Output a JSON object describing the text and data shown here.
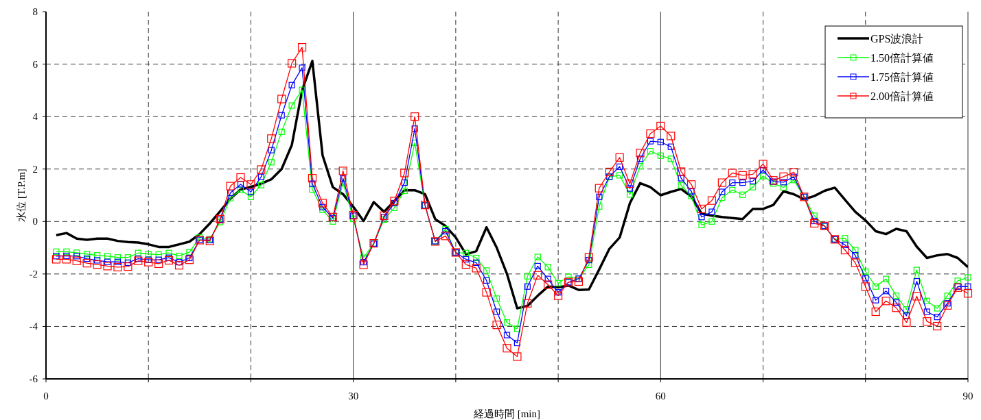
{
  "chart_data": {
    "type": "line",
    "xlabel": "経過時間 [min]",
    "ylabel": "水位 [T.P.m]",
    "x": [
      1,
      2,
      3,
      4,
      5,
      6,
      7,
      8,
      9,
      10,
      11,
      12,
      13,
      14,
      15,
      16,
      17,
      18,
      19,
      20,
      21,
      22,
      23,
      24,
      25,
      26,
      27,
      28,
      29,
      30,
      31,
      32,
      33,
      34,
      35,
      36,
      37,
      38,
      39,
      40,
      41,
      42,
      43,
      44,
      45,
      46,
      47,
      48,
      49,
      50,
      51,
      52,
      53,
      54,
      55,
      56,
      57,
      58,
      59,
      60,
      61,
      62,
      63,
      64,
      65,
      66,
      67,
      68,
      69,
      70,
      71,
      72,
      73,
      74,
      75,
      76,
      77,
      78,
      79,
      80,
      81,
      82,
      83,
      84,
      85,
      86,
      87,
      88,
      89,
      90
    ],
    "xlim": [
      0,
      90
    ],
    "ylim": [
      -6,
      8
    ],
    "xticks": [
      0,
      {
        "value": 10,
        "label": null
      },
      {
        "value": 20,
        "label": null
      },
      30,
      {
        "value": 40,
        "label": null
      },
      {
        "value": 50,
        "label": null
      },
      60,
      {
        "value": 70,
        "label": null
      },
      {
        "value": 80,
        "label": null
      },
      90
    ],
    "yticks": [
      -6,
      -4,
      -2,
      0,
      2,
      4,
      6,
      8
    ],
    "grid": true,
    "legend": "top right",
    "series": [
      {
        "name": "GPS波浪計",
        "color": "#000000",
        "marker": "none",
        "values": [
          -0.52,
          -0.44,
          -0.65,
          -0.7,
          -0.65,
          -0.65,
          -0.74,
          -0.78,
          -0.8,
          -0.87,
          -0.97,
          -0.97,
          -0.87,
          -0.77,
          -0.48,
          -0.07,
          0.39,
          0.87,
          1.22,
          1.32,
          1.44,
          1.61,
          2.0,
          2.92,
          5.0,
          6.12,
          2.52,
          1.31,
          1.04,
          0.56,
          0.02,
          0.74,
          0.37,
          0.78,
          1.19,
          1.19,
          1.04,
          0.09,
          -0.17,
          -0.61,
          -1.25,
          -1.13,
          -0.22,
          -1.0,
          -2.0,
          -3.31,
          -3.22,
          -2.83,
          -2.48,
          -2.51,
          -2.44,
          -2.61,
          -2.59,
          -1.83,
          -1.04,
          -0.61,
          0.7,
          1.46,
          1.31,
          1.0,
          1.13,
          1.24,
          0.95,
          0.3,
          0.22,
          0.17,
          0.13,
          0.09,
          0.48,
          0.48,
          0.63,
          1.15,
          1.04,
          0.85,
          0.97,
          1.17,
          1.29,
          0.83,
          0.37,
          0.04,
          -0.37,
          -0.48,
          -0.28,
          -0.37,
          -0.96,
          -1.39,
          -1.29,
          -1.24,
          -1.39,
          -1.74
        ]
      },
      {
        "name": "1.50倍計算値",
        "color": "#00ff00",
        "marker": "square",
        "values": [
          -1.15,
          -1.15,
          -1.19,
          -1.24,
          -1.29,
          -1.32,
          -1.37,
          -1.37,
          -1.2,
          -1.24,
          -1.26,
          -1.2,
          -1.31,
          -1.17,
          -0.61,
          -0.67,
          -0.02,
          0.89,
          1.2,
          0.94,
          1.39,
          2.26,
          3.42,
          4.42,
          5.02,
          1.22,
          0.44,
          0.0,
          1.48,
          0.1,
          -1.38,
          -0.83,
          0.07,
          0.52,
          1.17,
          3.0,
          0.62,
          -0.76,
          -0.29,
          -1.19,
          -1.2,
          -1.39,
          -1.87,
          -2.94,
          -3.85,
          -4.09,
          -2.09,
          -1.35,
          -1.74,
          -2.35,
          -2.11,
          -2.18,
          -1.65,
          0.57,
          1.7,
          1.76,
          1.03,
          2.11,
          2.68,
          2.51,
          2.39,
          1.38,
          0.97,
          -0.13,
          0.0,
          0.91,
          1.2,
          1.02,
          1.31,
          1.73,
          1.45,
          1.3,
          1.58,
          0.94,
          0.22,
          -0.17,
          -0.68,
          -0.64,
          -1.09,
          -1.91,
          -2.48,
          -2.19,
          -2.83,
          -3.35,
          -1.85,
          -3.03,
          -3.31,
          -2.83,
          -2.26,
          -2.13
        ]
      },
      {
        "name": "1.75倍計算値",
        "color": "#0000ff",
        "marker": "square",
        "values": [
          -1.32,
          -1.31,
          -1.32,
          -1.42,
          -1.48,
          -1.54,
          -1.54,
          -1.57,
          -1.42,
          -1.46,
          -1.46,
          -1.38,
          -1.55,
          -1.39,
          -0.7,
          -0.71,
          0.07,
          1.09,
          1.42,
          1.13,
          1.7,
          2.72,
          4.05,
          5.2,
          5.86,
          1.44,
          0.55,
          0.13,
          1.64,
          0.22,
          -1.55,
          -0.85,
          0.17,
          0.7,
          1.48,
          3.54,
          0.61,
          -0.75,
          -0.37,
          -1.18,
          -1.44,
          -1.57,
          -2.25,
          -3.44,
          -4.33,
          -4.63,
          -2.48,
          -1.7,
          -2.19,
          -2.7,
          -2.32,
          -2.18,
          -1.47,
          0.94,
          1.71,
          2.09,
          1.26,
          2.39,
          3.06,
          3.03,
          2.85,
          1.65,
          1.15,
          0.17,
          0.37,
          1.13,
          1.48,
          1.48,
          1.54,
          1.96,
          1.52,
          1.5,
          1.7,
          0.94,
          0.02,
          -0.17,
          -0.68,
          -0.89,
          -1.29,
          -2.16,
          -3.0,
          -2.65,
          -3.09,
          -3.59,
          -2.28,
          -3.44,
          -3.64,
          -3.12,
          -2.48,
          -2.48
        ]
      },
      {
        "name": "2.00倍計算値",
        "color": "#ff0000",
        "marker": "square",
        "values": [
          -1.44,
          -1.44,
          -1.5,
          -1.59,
          -1.64,
          -1.7,
          -1.74,
          -1.72,
          -1.5,
          -1.55,
          -1.61,
          -1.48,
          -1.67,
          -1.46,
          -0.71,
          -0.74,
          0.09,
          1.35,
          1.68,
          1.41,
          1.98,
          3.16,
          4.67,
          6.03,
          6.64,
          1.65,
          0.7,
          0.17,
          1.93,
          0.24,
          -1.65,
          -0.83,
          0.22,
          0.78,
          1.85,
          4.0,
          0.63,
          -0.76,
          -0.55,
          -1.18,
          -1.64,
          -1.78,
          -2.7,
          -3.94,
          -4.83,
          -5.15,
          -3.12,
          -2.05,
          -2.41,
          -2.83,
          -2.31,
          -2.29,
          -1.36,
          1.27,
          1.89,
          2.44,
          1.44,
          2.61,
          3.35,
          3.64,
          3.26,
          1.9,
          1.41,
          0.48,
          0.8,
          1.48,
          1.85,
          1.76,
          1.8,
          2.19,
          1.57,
          1.71,
          1.88,
          0.94,
          -0.07,
          -0.17,
          -0.68,
          -1.09,
          -1.57,
          -2.48,
          -3.44,
          -3.03,
          -3.29,
          -3.85,
          -2.85,
          -3.81,
          -3.99,
          -3.2,
          -2.52,
          -2.74
        ]
      }
    ]
  }
}
